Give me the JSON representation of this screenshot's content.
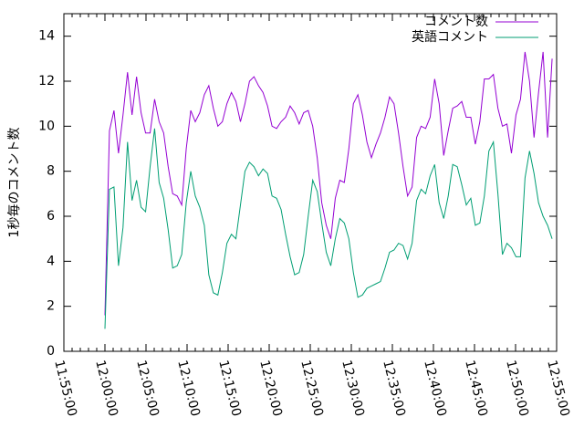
{
  "chart_data": {
    "type": "line",
    "y_label": "1秒毎のコメント数",
    "x": [
      "12:00:00",
      "12:00:33",
      "12:01:06",
      "12:01:39",
      "12:02:12",
      "12:02:45",
      "12:03:18",
      "12:03:51",
      "12:04:24",
      "12:04:57",
      "12:05:30",
      "12:06:03",
      "12:06:36",
      "12:07:09",
      "12:07:42",
      "12:08:15",
      "12:08:48",
      "12:09:21",
      "12:09:54",
      "12:10:27",
      "12:11:00",
      "12:11:33",
      "12:12:06",
      "12:12:39",
      "12:13:12",
      "12:13:45",
      "12:14:18",
      "12:14:51",
      "12:15:24",
      "12:15:57",
      "12:16:30",
      "12:17:03",
      "12:17:36",
      "12:18:09",
      "12:18:42",
      "12:19:15",
      "12:19:48",
      "12:20:21",
      "12:20:54",
      "12:21:27",
      "12:22:00",
      "12:22:33",
      "12:23:06",
      "12:23:39",
      "12:24:12",
      "12:24:45",
      "12:25:18",
      "12:25:51",
      "12:26:24",
      "12:26:57",
      "12:27:30",
      "12:28:03",
      "12:28:36",
      "12:29:09",
      "12:29:42",
      "12:30:15",
      "12:30:48",
      "12:31:21",
      "12:31:54",
      "12:32:27",
      "12:33:00",
      "12:33:33",
      "12:34:06",
      "12:34:39",
      "12:35:12",
      "12:35:45",
      "12:36:18",
      "12:36:51",
      "12:37:24",
      "12:37:57",
      "12:38:30",
      "12:39:03",
      "12:39:36",
      "12:40:09",
      "12:40:42",
      "12:41:15",
      "12:41:48",
      "12:42:21",
      "12:42:54",
      "12:43:27",
      "12:44:00",
      "12:44:33",
      "12:45:06",
      "12:45:39",
      "12:46:12",
      "12:46:45",
      "12:47:18",
      "12:47:51",
      "12:48:24",
      "12:48:57",
      "12:49:30",
      "12:50:03",
      "12:50:36",
      "12:51:09",
      "12:51:42",
      "12:52:15",
      "12:52:48",
      "12:53:21",
      "12:53:54",
      "12:54:27"
    ],
    "series": [
      {
        "name": "コメント数",
        "color": "#9400d3",
        "values": [
          1.6,
          9.8,
          10.7,
          8.8,
          10.5,
          12.4,
          10.5,
          12.2,
          10.6,
          9.7,
          9.7,
          11.2,
          10.2,
          9.7,
          8.2,
          7.0,
          6.9,
          6.5,
          9.0,
          10.7,
          10.2,
          10.6,
          11.4,
          11.8,
          10.8,
          10.0,
          10.2,
          11.0,
          11.5,
          11.1,
          10.2,
          11.0,
          12.0,
          12.2,
          11.8,
          11.5,
          10.9,
          10.0,
          9.9,
          10.2,
          10.4,
          10.9,
          10.6,
          10.1,
          10.6,
          10.7,
          10.0,
          8.6,
          6.6,
          5.6,
          5.0,
          6.8,
          7.6,
          7.5,
          9.0,
          11.0,
          11.4,
          10.5,
          9.3,
          8.6,
          9.2,
          9.7,
          10.4,
          11.3,
          11.0,
          9.7,
          8.2,
          6.9,
          7.3,
          9.5,
          10.0,
          9.9,
          10.4,
          12.1,
          11.0,
          8.7,
          9.8,
          10.8,
          10.9,
          11.1,
          10.4,
          10.4,
          9.2,
          10.2,
          12.1,
          12.1,
          12.3,
          10.8,
          10.0,
          10.1,
          8.8,
          10.5,
          11.2,
          13.3,
          12.0,
          9.5,
          11.5,
          13.3,
          9.5,
          13.0
        ]
      },
      {
        "name": "英語コメント",
        "color": "#009e73",
        "values": [
          1.0,
          7.2,
          7.3,
          3.8,
          5.5,
          9.3,
          6.7,
          7.6,
          6.4,
          6.2,
          8.2,
          9.9,
          7.5,
          6.8,
          5.4,
          3.7,
          3.8,
          4.3,
          6.6,
          8.0,
          6.9,
          6.4,
          5.6,
          3.4,
          2.6,
          2.5,
          3.5,
          4.8,
          5.2,
          5.0,
          6.5,
          8.0,
          8.4,
          8.2,
          7.8,
          8.1,
          7.9,
          6.9,
          6.8,
          6.3,
          5.2,
          4.2,
          3.4,
          3.5,
          4.3,
          6.0,
          7.6,
          7.1,
          5.7,
          4.4,
          3.8,
          5.0,
          5.9,
          5.7,
          5.0,
          3.5,
          2.4,
          2.5,
          2.8,
          2.9,
          3.0,
          3.1,
          3.7,
          4.4,
          4.5,
          4.8,
          4.7,
          4.1,
          4.8,
          6.7,
          7.2,
          7.0,
          7.8,
          8.3,
          6.6,
          5.9,
          6.9,
          8.3,
          8.2,
          7.4,
          6.5,
          6.8,
          5.6,
          5.7,
          6.9,
          8.9,
          9.3,
          7.0,
          4.3,
          4.8,
          4.6,
          4.2,
          4.2,
          7.7,
          8.9,
          7.9,
          6.6,
          6.0,
          5.6,
          5.0
        ]
      }
    ],
    "xlim": [
      "11:55:00",
      "12:55:00"
    ],
    "xticks": [
      "11:55:00",
      "12:00:00",
      "12:05:00",
      "12:10:00",
      "12:15:00",
      "12:20:00",
      "12:25:00",
      "12:30:00",
      "12:35:00",
      "12:40:00",
      "12:45:00",
      "12:50:00",
      "12:55:00"
    ],
    "mxticks": 5,
    "ylim": [
      0,
      15
    ],
    "yticks": [
      0,
      2,
      4,
      6,
      8,
      10,
      12,
      14
    ],
    "legend": "top-right",
    "grid": false
  }
}
